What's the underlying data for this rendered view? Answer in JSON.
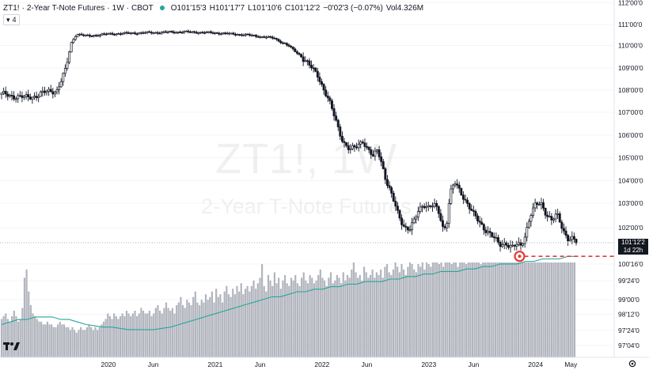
{
  "legend": {
    "symbol": "ZT1!",
    "name": "2-Year T-Note Futures",
    "interval": "1W",
    "exchange": "CBOT",
    "open_label": "O",
    "open": "101'15'3",
    "high_label": "H",
    "high": "101'17'7",
    "low_label": "L",
    "low": "101'10'6",
    "close_label": "C",
    "close": "101'12'2",
    "change": "−0'02'3 (−0.07%)",
    "vol_label": "Vol",
    "vol": "4.326M",
    "indicator_count": "4"
  },
  "watermark": {
    "line1": "ZT1!, 1W",
    "line2": "2-Year T-Note Futures"
  },
  "price_label": {
    "price": "101'12'2",
    "countdown": "1d 22h"
  },
  "colors": {
    "up": "#ffffff",
    "down": "#131722",
    "volume": "#b2b5be",
    "volume_ma": "#26a69a",
    "marker": "#e53935",
    "text": "#131722"
  },
  "chart_data": {
    "type": "candlestick",
    "price_axis": {
      "ticks": [
        {
          "label": "112'00'0",
          "value": 112.0
        },
        {
          "label": "111'00'0",
          "value": 111.0
        },
        {
          "label": "110'00'0",
          "value": 110.0
        },
        {
          "label": "109'00'0",
          "value": 109.0
        },
        {
          "label": "108'00'0",
          "value": 108.0
        },
        {
          "label": "107'00'0",
          "value": 107.0
        },
        {
          "label": "106'00'0",
          "value": 106.0
        },
        {
          "label": "105'00'0",
          "value": 105.0
        },
        {
          "label": "104'00'0",
          "value": 104.0
        },
        {
          "label": "103'00'0",
          "value": 103.0
        },
        {
          "label": "102'00'0",
          "value": 102.0
        },
        {
          "label": "100'16'0",
          "value": 100.5
        },
        {
          "label": "99'24'0",
          "value": 99.75
        },
        {
          "label": "99'00'0",
          "value": 99.0
        },
        {
          "label": "98'12'0",
          "value": 98.375
        },
        {
          "label": "97'24'0",
          "value": 97.75
        },
        {
          "label": "97'04'0",
          "value": 97.125
        }
      ]
    },
    "time_axis": {
      "labels": [
        {
          "label": "2020",
          "year": 2020.0
        },
        {
          "label": "Jun",
          "year": 2020.42
        },
        {
          "label": "2021",
          "year": 2021.0
        },
        {
          "label": "Jun",
          "year": 2021.42
        },
        {
          "label": "2022",
          "year": 2022.0
        },
        {
          "label": "Jun",
          "year": 2022.42
        },
        {
          "label": "2023",
          "year": 2023.0
        },
        {
          "label": "Jun",
          "year": 2023.42
        },
        {
          "label": "2024",
          "year": 2024.0
        },
        {
          "label": "May",
          "year": 2024.33
        }
      ],
      "start_year": 2019.0,
      "end_year": 2024.38
    },
    "price_path": [
      [
        2019.0,
        107.8
      ],
      [
        2019.1,
        107.75
      ],
      [
        2019.22,
        107.65
      ],
      [
        2019.32,
        107.75
      ],
      [
        2019.45,
        107.95
      ],
      [
        2019.52,
        108.0
      ],
      [
        2019.6,
        108.9
      ],
      [
        2019.65,
        110.1
      ],
      [
        2019.7,
        110.55
      ],
      [
        2019.8,
        110.45
      ],
      [
        2020.0,
        110.55
      ],
      [
        2020.3,
        110.6
      ],
      [
        2020.7,
        110.65
      ],
      [
        2021.0,
        110.6
      ],
      [
        2021.3,
        110.5
      ],
      [
        2021.55,
        110.35
      ],
      [
        2021.68,
        110.0
      ],
      [
        2021.8,
        109.55
      ],
      [
        2021.88,
        109.1
      ],
      [
        2021.96,
        108.7
      ],
      [
        2022.02,
        108.0
      ],
      [
        2022.08,
        107.3
      ],
      [
        2022.14,
        106.5
      ],
      [
        2022.2,
        105.7
      ],
      [
        2022.26,
        105.3
      ],
      [
        2022.32,
        105.5
      ],
      [
        2022.38,
        105.8
      ],
      [
        2022.42,
        105.4
      ],
      [
        2022.48,
        105.0
      ],
      [
        2022.52,
        105.4
      ],
      [
        2022.56,
        104.8
      ],
      [
        2022.6,
        104.0
      ],
      [
        2022.66,
        103.2
      ],
      [
        2022.72,
        102.5
      ],
      [
        2022.78,
        102.0
      ],
      [
        2022.82,
        101.9
      ],
      [
        2022.86,
        102.2
      ],
      [
        2022.9,
        102.7
      ],
      [
        2022.95,
        103.0
      ],
      [
        2023.0,
        102.8
      ],
      [
        2023.05,
        102.9
      ],
      [
        2023.1,
        102.6
      ],
      [
        2023.14,
        101.9
      ],
      [
        2023.17,
        102.3
      ],
      [
        2023.2,
        103.4
      ],
      [
        2023.24,
        103.9
      ],
      [
        2023.3,
        103.5
      ],
      [
        2023.36,
        103.0
      ],
      [
        2023.42,
        102.5
      ],
      [
        2023.48,
        102.2
      ],
      [
        2023.54,
        101.9
      ],
      [
        2023.6,
        101.6
      ],
      [
        2023.66,
        101.3
      ],
      [
        2023.72,
        101.4
      ],
      [
        2023.78,
        101.15
      ],
      [
        2023.83,
        101.3
      ],
      [
        2023.86,
        101.25
      ],
      [
        2023.9,
        101.7
      ],
      [
        2023.95,
        102.5
      ],
      [
        2024.0,
        102.9
      ],
      [
        2024.05,
        103.0
      ],
      [
        2024.1,
        102.6
      ],
      [
        2024.15,
        102.3
      ],
      [
        2024.2,
        102.5
      ],
      [
        2024.26,
        101.9
      ],
      [
        2024.3,
        101.6
      ],
      [
        2024.34,
        101.55
      ],
      [
        2024.38,
        101.38
      ]
    ],
    "current_price": 101.38,
    "marked_level": 100.82,
    "marker_year": 2023.85,
    "volume_millions": [
      1.4,
      1.5,
      1.6,
      1.4,
      1.3,
      1.5,
      1.7,
      1.5,
      1.3,
      1.4,
      1.8,
      2.9,
      3.2,
      2.4,
      1.9,
      1.6,
      1.5,
      1.4,
      1.3,
      1.3,
      1.2,
      1.2,
      1.3,
      1.2,
      1.2,
      1.1,
      1.1,
      1.2,
      1.3,
      1.2,
      1.2,
      1.1,
      1.1,
      1.0,
      1.1,
      1.0,
      0.9,
      1.0,
      1.1,
      1.0,
      1.0,
      1.1,
      1.2,
      1.1,
      1.0,
      1.1,
      1.0,
      1.1,
      1.2,
      1.3,
      1.4,
      1.6,
      1.5,
      1.4,
      1.6,
      1.5,
      1.4,
      1.5,
      1.6,
      1.5,
      1.7,
      1.6,
      1.5,
      1.6,
      1.7,
      1.5,
      1.6,
      1.8,
      1.7,
      1.6,
      1.6,
      1.7,
      1.5,
      1.6,
      1.8,
      1.9,
      1.7,
      1.6,
      1.8,
      2.0,
      1.8,
      1.7,
      1.8,
      1.6,
      1.9,
      2.0,
      2.2,
      1.9,
      1.8,
      2.1,
      2.0,
      1.9,
      2.2,
      2.4,
      2.0,
      1.9,
      2.1,
      2.0,
      2.3,
      2.1,
      2.2,
      2.4,
      2.0,
      2.5,
      2.2,
      2.3,
      2.0,
      2.4,
      2.6,
      2.3,
      2.2,
      2.5,
      2.3,
      2.6,
      2.4,
      2.7,
      2.3,
      2.5,
      2.6,
      2.4,
      2.6,
      2.8,
      2.5,
      2.7,
      2.9,
      3.4,
      2.6,
      2.4,
      3.0,
      2.8,
      2.6,
      3.1,
      2.7,
      2.9,
      2.5,
      2.8,
      3.0,
      2.7,
      2.6,
      2.9,
      2.8,
      3.0,
      2.7,
      2.6,
      2.9,
      3.1,
      2.8,
      2.7,
      3.0,
      2.9,
      2.7,
      2.8,
      3.0,
      3.2,
      2.9,
      2.8,
      2.6,
      2.9,
      3.1,
      2.7,
      2.8,
      3.0,
      2.9,
      2.7,
      3.1,
      2.8,
      3.0,
      2.9,
      3.2,
      3.5,
      3.1,
      2.9,
      3.0,
      2.8,
      3.3,
      3.1,
      2.9,
      3.0,
      3.2,
      2.9,
      3.1,
      3.0,
      3.2,
      2.9,
      3.3,
      3.4,
      3.1,
      3.0,
      3.2,
      3.5,
      3.3,
      3.1,
      3.4,
      3.2,
      3.0,
      3.3,
      3.6,
      3.4,
      3.2,
      3.1,
      3.4,
      3.3,
      3.5,
      3.2,
      3.6,
      3.4,
      3.3,
      3.5,
      3.7,
      3.5,
      3.4,
      3.6,
      3.3,
      3.5,
      3.8,
      3.6,
      3.4,
      3.7,
      3.5,
      3.3,
      3.6,
      3.8,
      3.5,
      3.4,
      3.7,
      3.9,
      3.6,
      3.5,
      3.8,
      3.6,
      3.4,
      3.7,
      3.9,
      3.7,
      3.5,
      3.6,
      3.8,
      3.6,
      3.5,
      3.9,
      3.7,
      3.6,
      3.8,
      4.0,
      3.7,
      3.6,
      3.9,
      3.7,
      3.8,
      4.0,
      3.9,
      3.7,
      4.1,
      3.8,
      3.9,
      4.3,
      4.0,
      3.9,
      4.2,
      4.0,
      3.9,
      4.1,
      4.3,
      4.0,
      4.2,
      4.1,
      4.3,
      4.0,
      4.4,
      4.3,
      4.2,
      4.5,
      4.1,
      4.3,
      4.2,
      4.326
    ],
    "volume_ma_millions": [
      1.3,
      1.4,
      1.5,
      1.5,
      1.6,
      1.6,
      1.6,
      1.5,
      1.5,
      1.4,
      1.3,
      1.25,
      1.2,
      1.2,
      1.15,
      1.1,
      1.1,
      1.1,
      1.1,
      1.15,
      1.2,
      1.3,
      1.4,
      1.5,
      1.6,
      1.7,
      1.8,
      1.9,
      2.0,
      2.1,
      2.2,
      2.3,
      2.4,
      2.4,
      2.5,
      2.6,
      2.6,
      2.7,
      2.7,
      2.8,
      2.8,
      2.9,
      2.9,
      3.0,
      3.0,
      3.0,
      3.1,
      3.1,
      3.2,
      3.2,
      3.3,
      3.3,
      3.4,
      3.4,
      3.4,
      3.5,
      3.5,
      3.6,
      3.6,
      3.7,
      3.7,
      3.7,
      3.8,
      3.8,
      3.9,
      3.9,
      3.9,
      4.0,
      4.0
    ]
  }
}
